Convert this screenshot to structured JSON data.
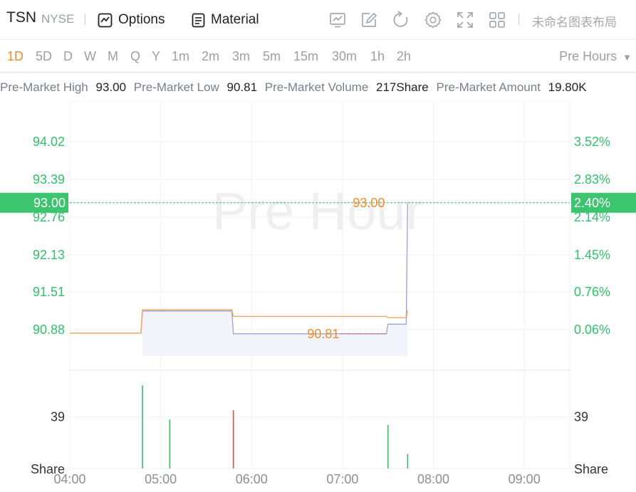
{
  "header": {
    "symbol": "TSN",
    "exchange": "NYSE",
    "options_label": "Options",
    "material_label": "Material",
    "layout_name": "未命名图表布局",
    "icons": [
      "indicator-chart-icon",
      "draw-icon",
      "reset-icon",
      "settings-icon",
      "fullscreen-icon",
      "grid-layout-icon"
    ]
  },
  "periods": [
    "1D",
    "5D",
    "D",
    "W",
    "M",
    "Q",
    "Y",
    "1m",
    "2m",
    "3m",
    "5m",
    "15m",
    "30m",
    "1h",
    "2h"
  ],
  "active_period": "1D",
  "session_select": "Pre Hours",
  "stats": [
    {
      "label": "Pre-Market High",
      "value": "93.00"
    },
    {
      "label": "Pre-Market Low",
      "value": "90.81"
    },
    {
      "label": "Pre-Market Volume",
      "value": "217Share"
    },
    {
      "label": "Pre-Market Amount",
      "value": "19.80K"
    }
  ],
  "colors": {
    "up": "#2fc26a",
    "down": "#ef4a4a",
    "orange": "#f28c28",
    "price_line": "#9aa4d6",
    "avg_line": "#f0a150",
    "grid": "#eef0f3"
  },
  "chart_data": {
    "type": "line",
    "watermark": "Pre Hour",
    "x_ticks": [
      "04:00",
      "05:00",
      "06:00",
      "07:00",
      "08:00",
      "09:00"
    ],
    "y_ticks_price": [
      "94.02",
      "93.39",
      "92.76",
      "92.13",
      "91.51",
      "90.88"
    ],
    "y_ticks_percent": [
      "3.52%",
      "2.83%",
      "2.14%",
      "1.45%",
      "0.76%",
      "0.06%"
    ],
    "current_price": "93.00",
    "current_change": "2.40%",
    "high_label": "93.00",
    "low_label": "90.81",
    "ylim": [
      90.2,
      94.7
    ],
    "xlim": [
      "04:00",
      "09:30"
    ],
    "price_series": [
      {
        "t": "04:00",
        "v": 90.82
      },
      {
        "t": "04:47",
        "v": 90.82
      },
      {
        "t": "04:48",
        "v": 91.19
      },
      {
        "t": "05:47",
        "v": 91.19
      },
      {
        "t": "05:48",
        "v": 90.81
      },
      {
        "t": "07:29",
        "v": 90.81
      },
      {
        "t": "07:30",
        "v": 90.97
      },
      {
        "t": "07:42",
        "v": 90.97
      },
      {
        "t": "07:43",
        "v": 93.0
      }
    ],
    "avg_series": [
      {
        "t": "04:00",
        "v": 90.82
      },
      {
        "t": "04:47",
        "v": 90.82
      },
      {
        "t": "04:48",
        "v": 91.21
      },
      {
        "t": "05:47",
        "v": 91.21
      },
      {
        "t": "05:48",
        "v": 91.1
      },
      {
        "t": "07:29",
        "v": 91.1
      },
      {
        "t": "07:30",
        "v": 91.08
      },
      {
        "t": "07:42",
        "v": 91.08
      },
      {
        "t": "07:43",
        "v": 91.2
      }
    ],
    "volume": {
      "unit": "Share",
      "y_tick": "39",
      "y_tick_value": 39,
      "ymax": 70,
      "bars": [
        {
          "t": "04:48",
          "v": 63,
          "dir": "up"
        },
        {
          "t": "05:06",
          "v": 37,
          "dir": "up"
        },
        {
          "t": "05:48",
          "v": 44,
          "dir": "down"
        },
        {
          "t": "07:30",
          "v": 33,
          "dir": "up"
        },
        {
          "t": "07:43",
          "v": 11,
          "dir": "up"
        }
      ]
    }
  }
}
